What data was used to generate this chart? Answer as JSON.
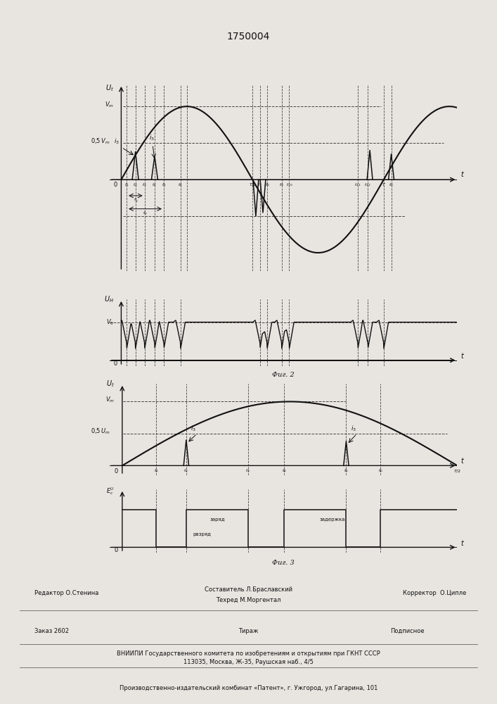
{
  "title": "1750004",
  "fig2_label": "Фиг. 2",
  "fig3_label": "Фиг. 3",
  "bg_color": "#e8e5e0",
  "lc": "#111111",
  "dc": "#444444",
  "fs_title": 10,
  "fs_label": 7,
  "fs_tick": 6,
  "fs_footer": 6,
  "footer": {
    "editor": "Редактор О.Стенина",
    "composer1": "Составитель Л.Браславский",
    "techred": "Техред М.Моргентал",
    "corrector": "Корректор  О.Ципле",
    "order": "Заказ 2602",
    "tirazh": "Тираж",
    "podpisnoe": "Подписное",
    "vniiipi": "ВНИИПИ Государственного комитета по изобретениям и открытиям при ГКНТ СССР",
    "address": "113035, Москва, Ж-35, Раушская наб., 4/5",
    "production": "Производственно-издательский комбинат «Патент», г. Ужгород, ул.Гагарина, 101"
  }
}
